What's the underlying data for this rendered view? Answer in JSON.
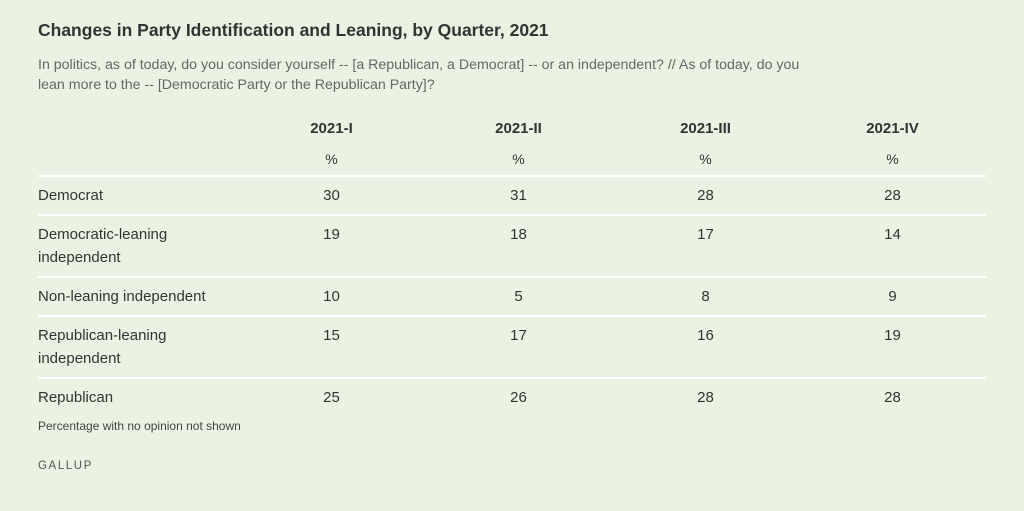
{
  "chart_data": {
    "type": "table",
    "title": "Changes in Party Identification and Leaning, by Quarter, 2021",
    "subtitle": "In politics, as of today, do you consider yourself -- [a Republican, a Democrat] -- or an independent? // As of today, do you lean more to the -- [Democratic Party or the Republican Party]?",
    "columns": [
      "2021-I",
      "2021-II",
      "2021-III",
      "2021-IV"
    ],
    "unit": "%",
    "rows": [
      {
        "label": "Democrat",
        "values": [
          30,
          31,
          28,
          28
        ]
      },
      {
        "label": "Democratic-leaning independent",
        "values": [
          19,
          18,
          17,
          14
        ]
      },
      {
        "label": "Non-leaning independent",
        "values": [
          10,
          5,
          8,
          9
        ]
      },
      {
        "label": "Republican-leaning independent",
        "values": [
          15,
          17,
          16,
          19
        ]
      },
      {
        "label": "Republican",
        "values": [
          25,
          26,
          28,
          28
        ]
      }
    ],
    "note": "Percentage with no opinion not shown",
    "source": "GALLUP"
  }
}
